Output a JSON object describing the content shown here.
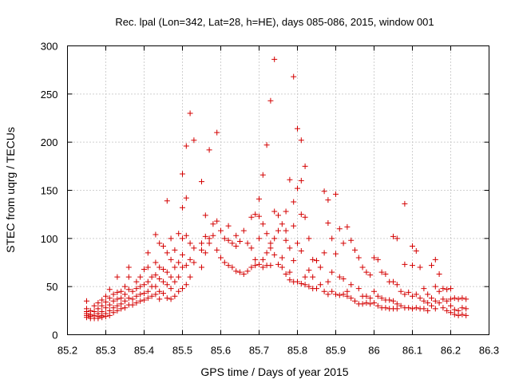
{
  "chart_data": {
    "type": "scatter",
    "title": "Rec. lpal (Lon=342, Lat=28, h=HE), days 085-086, 2015, window 001",
    "xlabel": "GPS time / Days of year 2015",
    "ylabel": "STEC from uqrg / TECUs",
    "xlim": [
      85.2,
      86.3
    ],
    "ylim": [
      0,
      300
    ],
    "xticks": [
      85.2,
      85.3,
      85.4,
      85.5,
      85.6,
      85.7,
      85.8,
      85.9,
      86,
      86.1,
      86.2,
      86.3
    ],
    "xtick_labels": [
      "85.2",
      "85.3",
      "85.4",
      "85.5",
      "85.6",
      "85.7",
      "85.8",
      "85.9",
      "86",
      "86.1",
      "86.2",
      "86.3"
    ],
    "yticks": [
      0,
      50,
      100,
      150,
      200,
      250,
      300
    ],
    "ytick_labels": [
      "0",
      "50",
      "100",
      "150",
      "200",
      "250",
      "300"
    ],
    "grid": true,
    "marker": "plus",
    "color": "#d40000",
    "points": [
      [
        85.25,
        35
      ],
      [
        85.25,
        27
      ],
      [
        85.25,
        24
      ],
      [
        85.25,
        22
      ],
      [
        85.25,
        20
      ],
      [
        85.25,
        18
      ],
      [
        85.26,
        25
      ],
      [
        85.26,
        21
      ],
      [
        85.26,
        19
      ],
      [
        85.26,
        17
      ],
      [
        85.27,
        30
      ],
      [
        85.27,
        24
      ],
      [
        85.27,
        20
      ],
      [
        85.27,
        17
      ],
      [
        85.28,
        33
      ],
      [
        85.28,
        27
      ],
      [
        85.28,
        22
      ],
      [
        85.28,
        19
      ],
      [
        85.28,
        17
      ],
      [
        85.29,
        36
      ],
      [
        85.29,
        30
      ],
      [
        85.29,
        24
      ],
      [
        85.29,
        20
      ],
      [
        85.29,
        18
      ],
      [
        85.3,
        40
      ],
      [
        85.3,
        34
      ],
      [
        85.3,
        28
      ],
      [
        85.3,
        22
      ],
      [
        85.3,
        19
      ],
      [
        85.31,
        47
      ],
      [
        85.31,
        38
      ],
      [
        85.31,
        31
      ],
      [
        85.31,
        25
      ],
      [
        85.31,
        20
      ],
      [
        85.32,
        42
      ],
      [
        85.32,
        35
      ],
      [
        85.32,
        28
      ],
      [
        85.32,
        23
      ],
      [
        85.33,
        60
      ],
      [
        85.33,
        44
      ],
      [
        85.33,
        37
      ],
      [
        85.33,
        30
      ],
      [
        85.33,
        25
      ],
      [
        85.34,
        45
      ],
      [
        85.34,
        38
      ],
      [
        85.34,
        32
      ],
      [
        85.34,
        27
      ],
      [
        85.35,
        50
      ],
      [
        85.35,
        42
      ],
      [
        85.35,
        35
      ],
      [
        85.35,
        28
      ],
      [
        85.36,
        70
      ],
      [
        85.36,
        60
      ],
      [
        85.36,
        47
      ],
      [
        85.36,
        38
      ],
      [
        85.36,
        31
      ],
      [
        85.37,
        45
      ],
      [
        85.37,
        37
      ],
      [
        85.37,
        31
      ],
      [
        85.38,
        55
      ],
      [
        85.38,
        48
      ],
      [
        85.38,
        40
      ],
      [
        85.38,
        33
      ],
      [
        85.39,
        60
      ],
      [
        85.39,
        50
      ],
      [
        85.39,
        42
      ],
      [
        85.39,
        35
      ],
      [
        85.4,
        68
      ],
      [
        85.4,
        52
      ],
      [
        85.4,
        43
      ],
      [
        85.4,
        36
      ],
      [
        85.41,
        85
      ],
      [
        85.41,
        70
      ],
      [
        85.41,
        55
      ],
      [
        85.41,
        45
      ],
      [
        85.41,
        38
      ],
      [
        85.42,
        60
      ],
      [
        85.42,
        50
      ],
      [
        85.42,
        40
      ],
      [
        85.43,
        104
      ],
      [
        85.43,
        75
      ],
      [
        85.43,
        62
      ],
      [
        85.43,
        50
      ],
      [
        85.43,
        42
      ],
      [
        85.44,
        95
      ],
      [
        85.44,
        70
      ],
      [
        85.44,
        58
      ],
      [
        85.44,
        45
      ],
      [
        85.44,
        37
      ],
      [
        85.45,
        92
      ],
      [
        85.45,
        68
      ],
      [
        85.45,
        55
      ],
      [
        85.45,
        43
      ],
      [
        85.46,
        139
      ],
      [
        85.46,
        85
      ],
      [
        85.46,
        65
      ],
      [
        85.46,
        52
      ],
      [
        85.46,
        38
      ],
      [
        85.47,
        100
      ],
      [
        85.47,
        78
      ],
      [
        85.47,
        60
      ],
      [
        85.47,
        48
      ],
      [
        85.47,
        37
      ],
      [
        85.48,
        88
      ],
      [
        85.48,
        70
      ],
      [
        85.48,
        55
      ],
      [
        85.48,
        40
      ],
      [
        85.49,
        105
      ],
      [
        85.49,
        75
      ],
      [
        85.49,
        60
      ],
      [
        85.49,
        45
      ],
      [
        85.5,
        167
      ],
      [
        85.5,
        132
      ],
      [
        85.5,
        100
      ],
      [
        85.5,
        83
      ],
      [
        85.5,
        70
      ],
      [
        85.5,
        48
      ],
      [
        85.51,
        196
      ],
      [
        85.51,
        142
      ],
      [
        85.51,
        103
      ],
      [
        85.51,
        72
      ],
      [
        85.51,
        52
      ],
      [
        85.52,
        230
      ],
      [
        85.52,
        95
      ],
      [
        85.52,
        78
      ],
      [
        85.52,
        60
      ],
      [
        85.53,
        202
      ],
      [
        85.53,
        90
      ],
      [
        85.53,
        75
      ],
      [
        85.55,
        159
      ],
      [
        85.55,
        95
      ],
      [
        85.55,
        88
      ],
      [
        85.55,
        70
      ],
      [
        85.56,
        124
      ],
      [
        85.56,
        102
      ],
      [
        85.56,
        85
      ],
      [
        85.57,
        192
      ],
      [
        85.57,
        100
      ],
      [
        85.57,
        95
      ],
      [
        85.58,
        115
      ],
      [
        85.58,
        103
      ],
      [
        85.59,
        210
      ],
      [
        85.59,
        118
      ],
      [
        85.59,
        88
      ],
      [
        85.6,
        108
      ],
      [
        85.6,
        80
      ],
      [
        85.61,
        100
      ],
      [
        85.61,
        75
      ],
      [
        85.62,
        113
      ],
      [
        85.62,
        98
      ],
      [
        85.62,
        72
      ],
      [
        85.63,
        95
      ],
      [
        85.63,
        70
      ],
      [
        85.64,
        103
      ],
      [
        85.64,
        92
      ],
      [
        85.64,
        66
      ],
      [
        85.65,
        97
      ],
      [
        85.65,
        65
      ],
      [
        85.66,
        108
      ],
      [
        85.66,
        63
      ],
      [
        85.67,
        95
      ],
      [
        85.67,
        66
      ],
      [
        85.68,
        122
      ],
      [
        85.68,
        90
      ],
      [
        85.68,
        70
      ],
      [
        85.69,
        125
      ],
      [
        85.69,
        78
      ],
      [
        85.69,
        72
      ],
      [
        85.7,
        141
      ],
      [
        85.7,
        123
      ],
      [
        85.7,
        100
      ],
      [
        85.7,
        73
      ],
      [
        85.71,
        166
      ],
      [
        85.71,
        115
      ],
      [
        85.71,
        78
      ],
      [
        85.71,
        70
      ],
      [
        85.72,
        197
      ],
      [
        85.72,
        105
      ],
      [
        85.72,
        85
      ],
      [
        85.72,
        72
      ],
      [
        85.73,
        243
      ],
      [
        85.73,
        95
      ],
      [
        85.73,
        90
      ],
      [
        85.73,
        72
      ],
      [
        85.74,
        286
      ],
      [
        85.74,
        128
      ],
      [
        85.74,
        100
      ],
      [
        85.74,
        83
      ],
      [
        85.75,
        124
      ],
      [
        85.75,
        108
      ],
      [
        85.75,
        73
      ],
      [
        85.76,
        115
      ],
      [
        85.76,
        80
      ],
      [
        85.76,
        70
      ],
      [
        85.77,
        128
      ],
      [
        85.77,
        108
      ],
      [
        85.77,
        98
      ],
      [
        85.77,
        63
      ],
      [
        85.78,
        161
      ],
      [
        85.78,
        90
      ],
      [
        85.78,
        65
      ],
      [
        85.78,
        57
      ],
      [
        85.79,
        268
      ],
      [
        85.79,
        138
      ],
      [
        85.79,
        113
      ],
      [
        85.79,
        77
      ],
      [
        85.79,
        55
      ],
      [
        85.8,
        214
      ],
      [
        85.8,
        152
      ],
      [
        85.8,
        95
      ],
      [
        85.8,
        55
      ],
      [
        85.81,
        202
      ],
      [
        85.81,
        160
      ],
      [
        85.81,
        125
      ],
      [
        85.81,
        87
      ],
      [
        85.81,
        53
      ],
      [
        85.82,
        175
      ],
      [
        85.82,
        122
      ],
      [
        85.82,
        60
      ],
      [
        85.82,
        52
      ],
      [
        85.83,
        100
      ],
      [
        85.83,
        67
      ],
      [
        85.83,
        50
      ],
      [
        85.84,
        78
      ],
      [
        85.84,
        60
      ],
      [
        85.84,
        48
      ],
      [
        85.85,
        77
      ],
      [
        85.85,
        48
      ],
      [
        85.86,
        70
      ],
      [
        85.86,
        52
      ],
      [
        85.87,
        149
      ],
      [
        85.87,
        85
      ],
      [
        85.87,
        45
      ],
      [
        85.88,
        140
      ],
      [
        85.88,
        116
      ],
      [
        85.88,
        55
      ],
      [
        85.88,
        42
      ],
      [
        85.89,
        100
      ],
      [
        85.89,
        65
      ],
      [
        85.89,
        45
      ],
      [
        85.9,
        146
      ],
      [
        85.9,
        84
      ],
      [
        85.9,
        42
      ],
      [
        85.91,
        110
      ],
      [
        85.91,
        60
      ],
      [
        85.91,
        41
      ],
      [
        85.92,
        95
      ],
      [
        85.92,
        58
      ],
      [
        85.92,
        42
      ],
      [
        85.93,
        112
      ],
      [
        85.93,
        45
      ],
      [
        85.93,
        40
      ],
      [
        85.94,
        98
      ],
      [
        85.94,
        52
      ],
      [
        85.94,
        38
      ],
      [
        85.95,
        88
      ],
      [
        85.95,
        35
      ],
      [
        85.96,
        80
      ],
      [
        85.96,
        48
      ],
      [
        85.96,
        32
      ],
      [
        85.97,
        70
      ],
      [
        85.97,
        40
      ],
      [
        85.97,
        32
      ],
      [
        85.98,
        65
      ],
      [
        85.98,
        40
      ],
      [
        85.98,
        33
      ],
      [
        85.99,
        62
      ],
      [
        85.99,
        38
      ],
      [
        85.99,
        32
      ],
      [
        86.0,
        80
      ],
      [
        86.0,
        45
      ],
      [
        86.0,
        33
      ],
      [
        86.01,
        78
      ],
      [
        86.01,
        40
      ],
      [
        86.01,
        30
      ],
      [
        86.02,
        65
      ],
      [
        86.02,
        38
      ],
      [
        86.02,
        28
      ],
      [
        86.03,
        63
      ],
      [
        86.03,
        36
      ],
      [
        86.03,
        28
      ],
      [
        86.04,
        55
      ],
      [
        86.04,
        36
      ],
      [
        86.04,
        27
      ],
      [
        86.05,
        102
      ],
      [
        86.05,
        55
      ],
      [
        86.05,
        35
      ],
      [
        86.05,
        27
      ],
      [
        86.06,
        100
      ],
      [
        86.06,
        52
      ],
      [
        86.06,
        32
      ],
      [
        86.06,
        27
      ],
      [
        86.07,
        45
      ],
      [
        86.07,
        30
      ],
      [
        86.08,
        136
      ],
      [
        86.08,
        73
      ],
      [
        86.08,
        42
      ],
      [
        86.08,
        28
      ],
      [
        86.09,
        44
      ],
      [
        86.09,
        28
      ],
      [
        86.1,
        92
      ],
      [
        86.1,
        72
      ],
      [
        86.1,
        40
      ],
      [
        86.1,
        27
      ],
      [
        86.11,
        87
      ],
      [
        86.11,
        42
      ],
      [
        86.11,
        28
      ],
      [
        86.12,
        70
      ],
      [
        86.12,
        38
      ],
      [
        86.12,
        27
      ],
      [
        86.13,
        48
      ],
      [
        86.13,
        35
      ],
      [
        86.13,
        27
      ],
      [
        86.14,
        42
      ],
      [
        86.14,
        33
      ],
      [
        86.14,
        25
      ],
      [
        86.15,
        72
      ],
      [
        86.15,
        38
      ],
      [
        86.15,
        30
      ],
      [
        86.16,
        78
      ],
      [
        86.16,
        50
      ],
      [
        86.16,
        35
      ],
      [
        86.16,
        27
      ],
      [
        86.17,
        63
      ],
      [
        86.17,
        45
      ],
      [
        86.17,
        33
      ],
      [
        86.18,
        48
      ],
      [
        86.18,
        37
      ],
      [
        86.18,
        28
      ],
      [
        86.19,
        47
      ],
      [
        86.19,
        35
      ],
      [
        86.19,
        25
      ],
      [
        86.2,
        48
      ],
      [
        86.2,
        37
      ],
      [
        86.2,
        30
      ],
      [
        86.2,
        23
      ],
      [
        86.21,
        38
      ],
      [
        86.21,
        26
      ],
      [
        86.21,
        21
      ],
      [
        86.22,
        37
      ],
      [
        86.22,
        25
      ],
      [
        86.22,
        20
      ],
      [
        86.23,
        38
      ],
      [
        86.23,
        28
      ],
      [
        86.23,
        21
      ],
      [
        86.24,
        37
      ],
      [
        86.24,
        27
      ],
      [
        86.24,
        20
      ]
    ]
  }
}
